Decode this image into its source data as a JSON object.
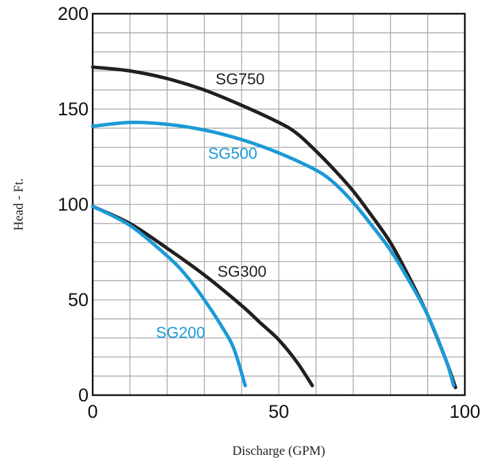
{
  "chart_data": {
    "type": "line",
    "title": "",
    "xlabel": "Discharge (GPM)",
    "ylabel": "Head - Ft.",
    "xlim": [
      0,
      100
    ],
    "ylim": [
      0,
      200
    ],
    "x_ticks": [
      "0",
      "50",
      "100"
    ],
    "y_ticks": [
      "0",
      "50",
      "100",
      "150",
      "200"
    ],
    "x_minor_step": 10,
    "y_minor_step": 10,
    "grid": true,
    "legend": "inline labels",
    "series": [
      {
        "name": "SG750",
        "color": "#231f20",
        "label_at": [
          33,
          163
        ],
        "points": [
          [
            0,
            172
          ],
          [
            10,
            170
          ],
          [
            20,
            166
          ],
          [
            30,
            160
          ],
          [
            40,
            152
          ],
          [
            50,
            143
          ],
          [
            55,
            137
          ],
          [
            60,
            128
          ],
          [
            65,
            118
          ],
          [
            70,
            107
          ],
          [
            75,
            94
          ],
          [
            80,
            80
          ],
          [
            85,
            62
          ],
          [
            90,
            42
          ],
          [
            95,
            18
          ],
          [
            97.5,
            4
          ]
        ]
      },
      {
        "name": "SG500",
        "color": "#1b9ad6",
        "label_at": [
          31,
          124
        ],
        "points": [
          [
            0,
            141
          ],
          [
            10,
            143
          ],
          [
            20,
            142
          ],
          [
            30,
            139
          ],
          [
            40,
            134
          ],
          [
            50,
            127
          ],
          [
            60,
            118
          ],
          [
            65,
            111
          ],
          [
            70,
            101
          ],
          [
            75,
            89
          ],
          [
            80,
            76
          ],
          [
            85,
            60
          ],
          [
            90,
            42
          ],
          [
            95,
            18
          ],
          [
            97,
            5
          ]
        ]
      },
      {
        "name": "SG300",
        "color": "#231f20",
        "label_at": [
          33.5,
          62
        ],
        "points": [
          [
            0,
            99
          ],
          [
            10,
            90
          ],
          [
            20,
            77
          ],
          [
            30,
            63
          ],
          [
            40,
            47
          ],
          [
            45,
            38
          ],
          [
            50,
            29
          ],
          [
            55,
            17
          ],
          [
            59,
            5
          ]
        ]
      },
      {
        "name": "SG200",
        "color": "#1b9ad6",
        "label_at": [
          17,
          30
        ],
        "points": [
          [
            0,
            99
          ],
          [
            10,
            89
          ],
          [
            20,
            73
          ],
          [
            25,
            63
          ],
          [
            30,
            50
          ],
          [
            35,
            35
          ],
          [
            38,
            24
          ],
          [
            41,
            5
          ]
        ]
      }
    ]
  }
}
